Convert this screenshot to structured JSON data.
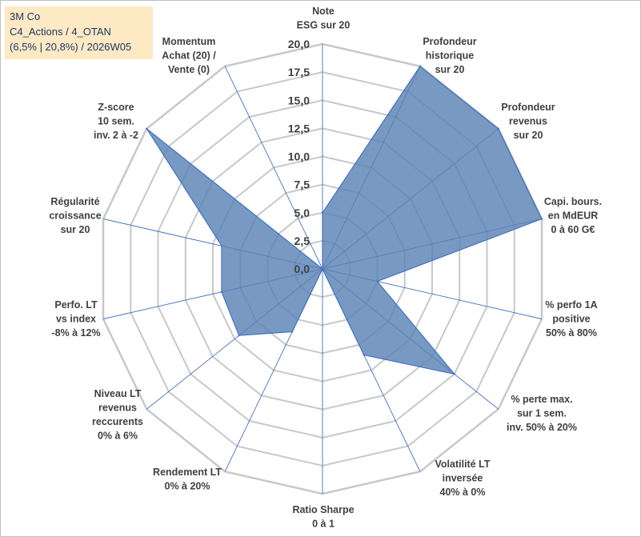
{
  "info_box": {
    "line1": "3M Co",
    "line2": "C4_Actions / 4_OTAN",
    "line3": "(6,5% | 20,8%) / 2026W05"
  },
  "colors": {
    "fill": "#5a82b4",
    "stroke": "#4472c4",
    "grid": "#c8c8c8",
    "spoke": "#4472c4",
    "label": "#404040"
  },
  "chart_data": {
    "type": "radar",
    "ylim": [
      0,
      20
    ],
    "ticks": [
      "0,0",
      "2,5",
      "5,0",
      "7,5",
      "10,0",
      "12,5",
      "15,0",
      "17,5",
      "20,0"
    ],
    "categories": [
      [
        "Note",
        "ESG sur 20"
      ],
      [
        "Profondeur",
        "historique",
        "sur 20"
      ],
      [
        "Profondeur",
        "revenus",
        "sur 20"
      ],
      [
        "Capi. bours.",
        "en MdEUR",
        "0 à 60 G€"
      ],
      [
        "% perfo 1A",
        "positive",
        "50% à 80%"
      ],
      [
        "% perte max.",
        "sur 1 sem.",
        "inv. 50% à 20%"
      ],
      [
        "Volatilité LT",
        "inversée",
        "40% à 0%"
      ],
      [
        "Ratio Sharpe",
        "0 à 1"
      ],
      [
        "Rendement LT",
        "0% à 20%"
      ],
      [
        "Niveau LT",
        "revenus",
        "reccurents",
        "0% à 6%"
      ],
      [
        "Perfo. LT",
        "vs index",
        "-8% à 12%"
      ],
      [
        "Régularité",
        "croissance",
        "sur 20"
      ],
      [
        "Z-score",
        "10 sem.",
        "inv. 2 à -2"
      ],
      [
        "Momentum",
        "Achat (20) /",
        "Vente (0)"
      ]
    ],
    "series": [
      {
        "name": "3M Co",
        "values": [
          5.0,
          20.0,
          20.0,
          20.0,
          5.0,
          15.0,
          8.5,
          0.0,
          6.2,
          9.5,
          9.2,
          9.2,
          20.0,
          0.0
        ]
      }
    ]
  }
}
